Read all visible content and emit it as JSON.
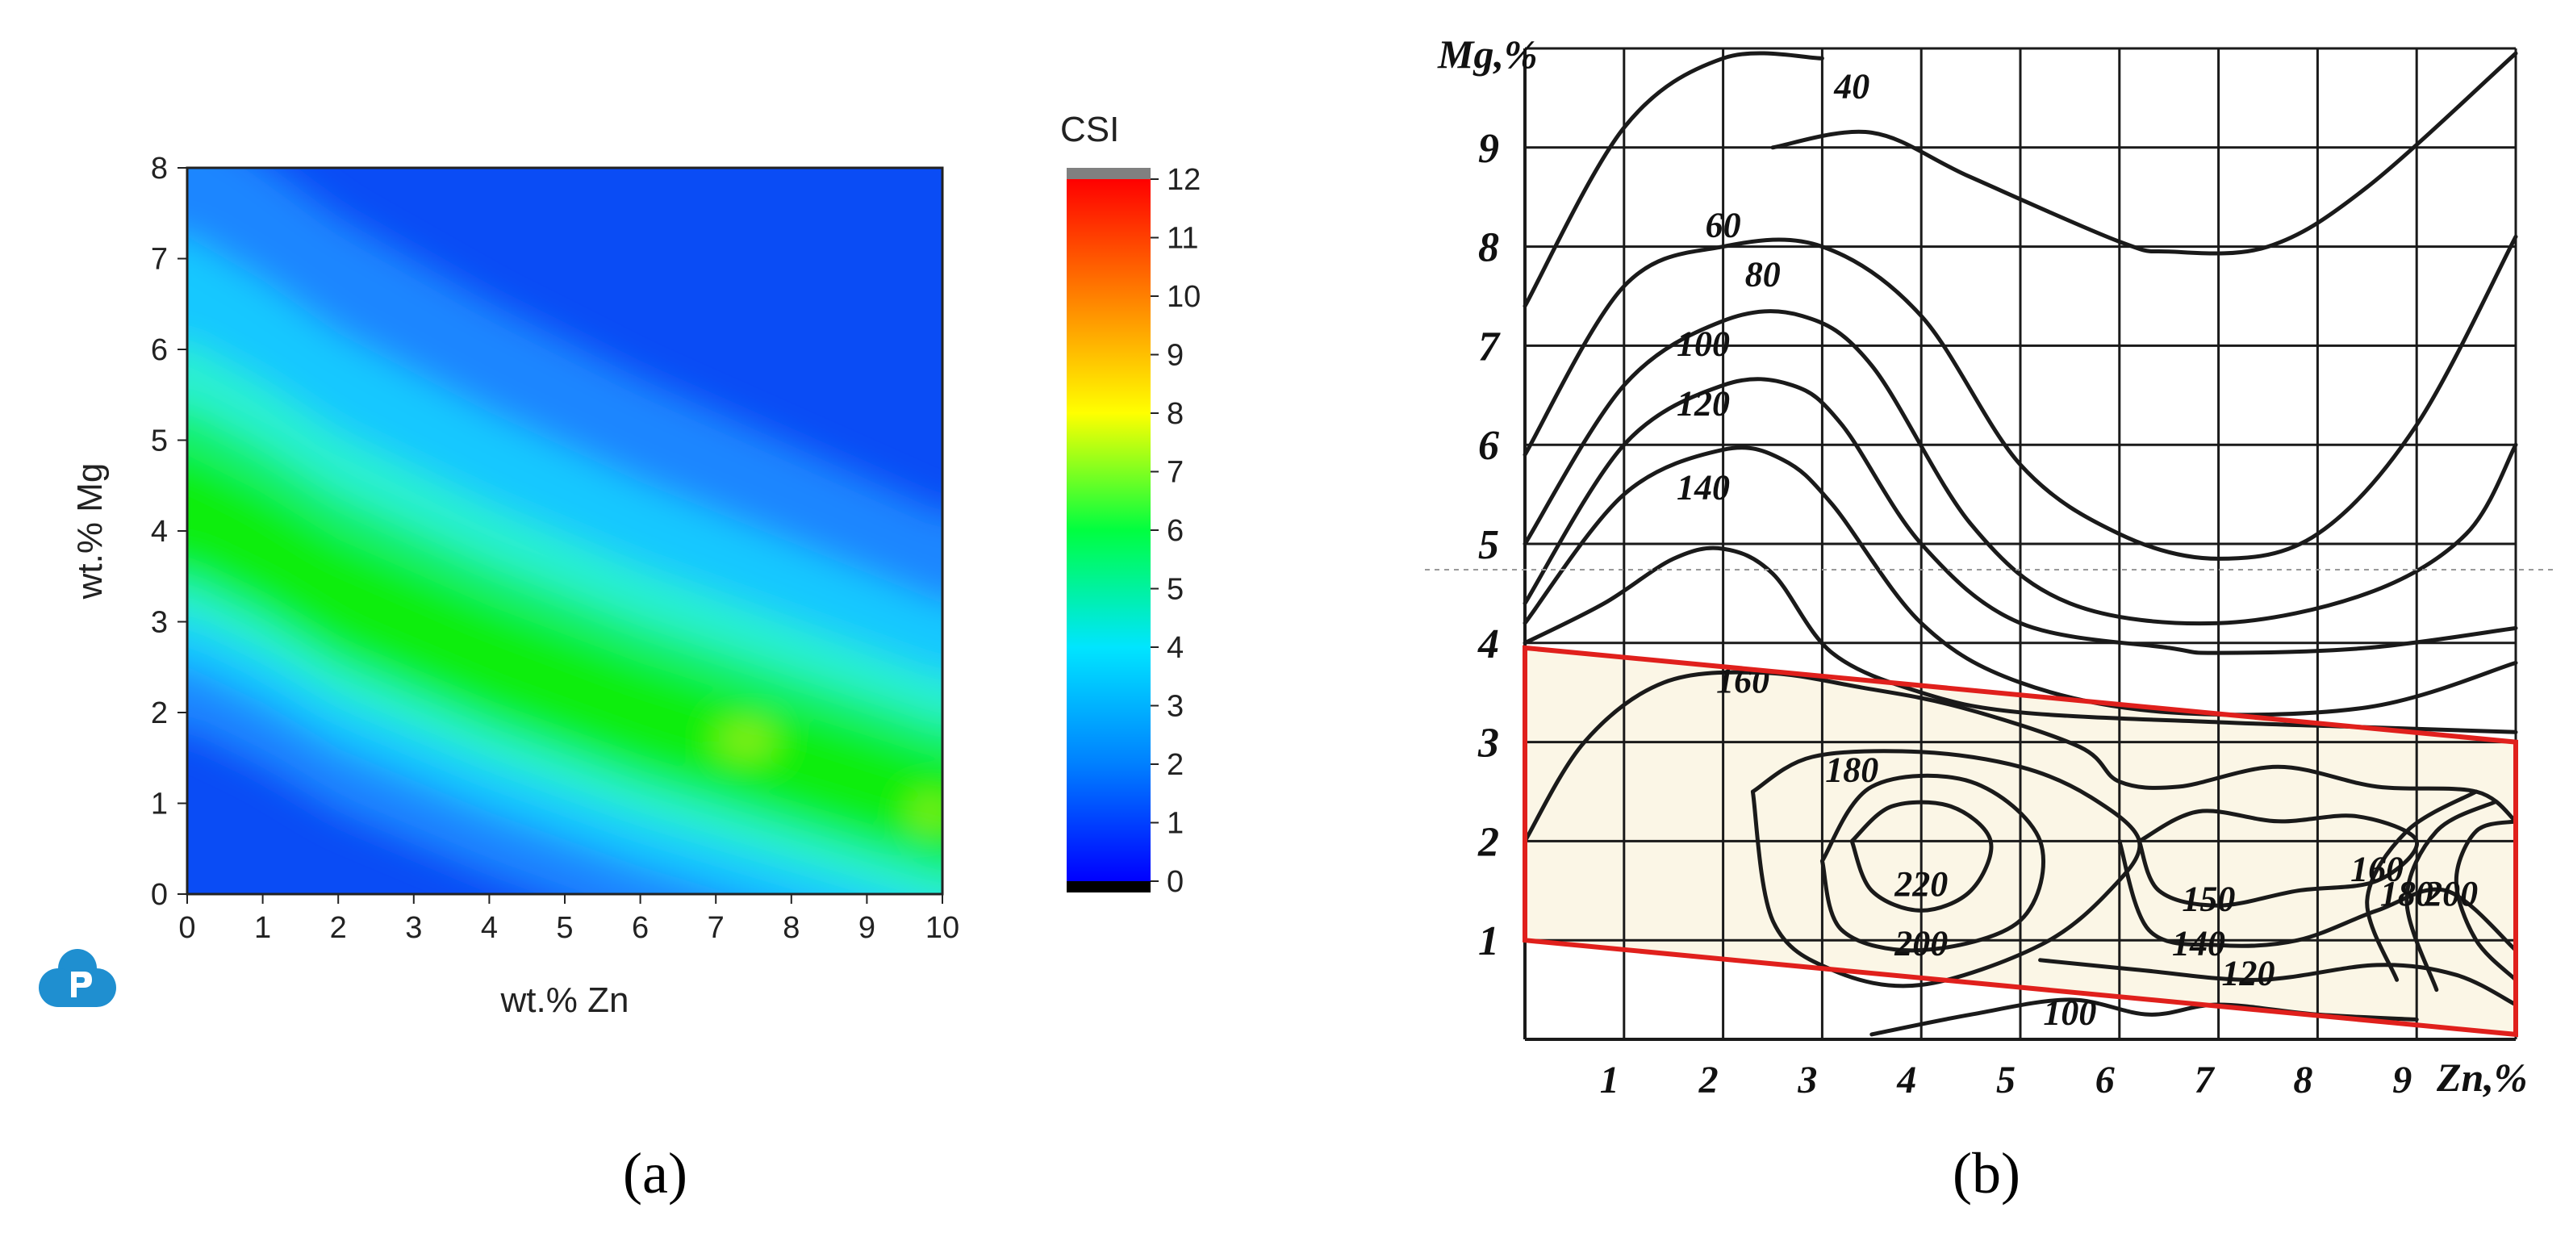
{
  "chart_data": [
    {
      "type": "heatmap",
      "panel_label": "(a)",
      "xlabel": "wt.% Zn",
      "ylabel": "wt.% Mg",
      "xlim": [
        0,
        10
      ],
      "ylim": [
        0,
        8
      ],
      "x_ticks": [
        "0",
        "1",
        "2",
        "3",
        "4",
        "5",
        "6",
        "7",
        "8",
        "9",
        "10"
      ],
      "y_ticks": [
        "0",
        "1",
        "2",
        "3",
        "4",
        "5",
        "6",
        "7",
        "8"
      ],
      "colorbar": {
        "title": "CSI",
        "min": 0,
        "max": 12,
        "ticks": [
          "0",
          "1",
          "2",
          "3",
          "4",
          "5",
          "6",
          "7",
          "8",
          "9",
          "10",
          "11",
          "12"
        ],
        "colors": [
          "#0000ff",
          "#0080ff",
          "#00e5ff",
          "#00ff40",
          "#ffff00",
          "#ff8000",
          "#ff0000"
        ],
        "over_color": "#808080",
        "under_color": "#000000"
      },
      "ridge_mg_by_zn": [
        {
          "zn": 0,
          "mg": 4.0
        },
        {
          "zn": 1,
          "mg": 3.6
        },
        {
          "zn": 2,
          "mg": 3.1
        },
        {
          "zn": 4,
          "mg": 2.4
        },
        {
          "zn": 6,
          "mg": 1.8
        },
        {
          "zn": 8,
          "mg": 1.3
        },
        {
          "zn": 10,
          "mg": 0.8
        }
      ],
      "ridge_peak_csi": 7
    },
    {
      "type": "line",
      "panel_label": "(b)",
      "xlabel": "Zn,%",
      "ylabel": "Mg,%",
      "xlim": [
        0,
        10
      ],
      "ylim": [
        0,
        10
      ],
      "x_ticks": [
        "1",
        "2",
        "3",
        "4",
        "5",
        "6",
        "7",
        "8",
        "9"
      ],
      "y_ticks": [
        "1",
        "2",
        "3",
        "4",
        "5",
        "6",
        "7",
        "8",
        "9"
      ],
      "contours": [
        {
          "label": "40",
          "label_at": [
            3.3,
            9.5
          ],
          "points": [
            [
              0,
              7.4
            ],
            [
              1,
              9.2
            ],
            [
              2,
              9.9
            ],
            [
              3,
              9.9
            ]
          ]
        },
        {
          "label": "40",
          "label_at": [
            3.3,
            9.5
          ],
          "points": [
            [
              2.5,
              9.0
            ],
            [
              3.5,
              9.15
            ],
            [
              4.5,
              8.7
            ],
            [
              6,
              8.05
            ],
            [
              6.5,
              7.95
            ],
            [
              7.5,
              8.0
            ],
            [
              8.5,
              8.6
            ],
            [
              10,
              9.95
            ]
          ]
        },
        {
          "label": "60",
          "label_at": [
            2.0,
            8.1
          ],
          "points": [
            [
              0,
              5.9
            ],
            [
              1,
              7.6
            ],
            [
              2,
              8.0
            ],
            [
              3,
              8.0
            ],
            [
              4,
              7.3
            ],
            [
              5,
              5.8
            ],
            [
              6,
              5.1
            ],
            [
              7,
              4.85
            ],
            [
              8,
              5.1
            ],
            [
              9,
              6.2
            ],
            [
              10,
              8.1
            ]
          ]
        },
        {
          "label": "80",
          "label_at": [
            2.4,
            7.6
          ],
          "points": [
            [
              0,
              5.0
            ],
            [
              1,
              6.6
            ],
            [
              2,
              7.25
            ],
            [
              2.8,
              7.3
            ],
            [
              3.5,
              6.8
            ],
            [
              4.5,
              5.2
            ],
            [
              5.5,
              4.4
            ],
            [
              7,
              4.2
            ],
            [
              8.5,
              4.5
            ],
            [
              9.5,
              5.1
            ],
            [
              10,
              6.0
            ]
          ]
        },
        {
          "label": "100",
          "label_at": [
            1.8,
            6.9
          ],
          "points": [
            [
              0,
              4.4
            ],
            [
              1,
              6.0
            ],
            [
              2,
              6.6
            ],
            [
              2.7,
              6.6
            ],
            [
              3.2,
              6.2
            ],
            [
              4,
              5.0
            ],
            [
              5,
              4.2
            ],
            [
              6.5,
              3.95
            ],
            [
              7,
              3.9
            ],
            [
              8.5,
              3.95
            ],
            [
              10,
              4.15
            ]
          ]
        },
        {
          "label": "120",
          "label_at": [
            1.8,
            6.3
          ],
          "points": [
            [
              0,
              4.2
            ],
            [
              1,
              5.5
            ],
            [
              2,
              5.95
            ],
            [
              2.6,
              5.85
            ],
            [
              3.1,
              5.4
            ],
            [
              4,
              4.2
            ],
            [
              5,
              3.6
            ],
            [
              6.5,
              3.3
            ],
            [
              8.5,
              3.35
            ],
            [
              10,
              3.8
            ]
          ]
        },
        {
          "label": "140",
          "label_at": [
            1.8,
            5.45
          ],
          "points": [
            [
              0,
              4.0
            ],
            [
              0.8,
              4.4
            ],
            [
              1.5,
              4.85
            ],
            [
              2,
              4.95
            ],
            [
              2.5,
              4.7
            ],
            [
              3.1,
              3.9
            ],
            [
              4,
              3.5
            ],
            [
              5,
              3.3
            ],
            [
              7,
              3.2
            ],
            [
              8.5,
              3.15
            ],
            [
              10,
              3.1
            ]
          ]
        },
        {
          "label": "160",
          "label_at": [
            2.2,
            3.5
          ],
          "points": [
            [
              0,
              2.0
            ],
            [
              0.6,
              3.0
            ],
            [
              1.4,
              3.6
            ],
            [
              2.4,
              3.7
            ],
            [
              3.4,
              3.55
            ],
            [
              4.4,
              3.35
            ],
            [
              5.6,
              2.95
            ],
            [
              6,
              2.6
            ],
            [
              6.6,
              2.55
            ],
            [
              7.6,
              2.75
            ],
            [
              8.6,
              2.55
            ],
            [
              9.6,
              2.5
            ],
            [
              10,
              2.2
            ]
          ]
        },
        {
          "label": "180",
          "label_at": [
            3.3,
            2.6
          ],
          "points": [
            [
              2.3,
              2.5
            ],
            [
              2.9,
              2.85
            ],
            [
              4.0,
              2.9
            ],
            [
              5.0,
              2.75
            ],
            [
              5.7,
              2.45
            ],
            [
              6.2,
              2.0
            ],
            [
              5.9,
              1.5
            ],
            [
              5.2,
              0.95
            ],
            [
              4.0,
              0.55
            ],
            [
              3.1,
              0.7
            ],
            [
              2.5,
              1.2
            ],
            [
              2.3,
              2.5
            ]
          ]
        },
        {
          "label": "220",
          "label_at": [
            4.0,
            1.45
          ],
          "points": [
            [
              3.3,
              2.0
            ],
            [
              3.7,
              2.35
            ],
            [
              4.3,
              2.35
            ],
            [
              4.7,
              2.0
            ],
            [
              4.5,
              1.5
            ],
            [
              4.0,
              1.3
            ],
            [
              3.5,
              1.5
            ],
            [
              3.3,
              2.0
            ]
          ]
        },
        {
          "label": "200",
          "label_at": [
            4.0,
            0.85
          ],
          "points": [
            [
              3.0,
              1.8
            ],
            [
              3.5,
              2.55
            ],
            [
              4.5,
              2.6
            ],
            [
              5.2,
              2.0
            ],
            [
              5.0,
              1.2
            ],
            [
              4.0,
              0.9
            ],
            [
              3.2,
              1.1
            ],
            [
              3.0,
              1.8
            ]
          ]
        },
        {
          "label": "150",
          "label_at": [
            6.9,
            1.3
          ],
          "points": [
            [
              6.2,
              2.0
            ],
            [
              6.8,
              2.3
            ],
            [
              7.6,
              2.2
            ],
            [
              8.4,
              2.25
            ],
            [
              9.0,
              2.0
            ],
            [
              8.6,
              1.6
            ],
            [
              7.8,
              1.5
            ],
            [
              7.0,
              1.35
            ],
            [
              6.4,
              1.5
            ],
            [
              6.2,
              2.0
            ]
          ]
        },
        {
          "label": "140",
          "label_at": [
            6.8,
            0.85
          ],
          "points": [
            [
              6.0,
              2.0
            ],
            [
              6.3,
              1.1
            ],
            [
              7.0,
              0.95
            ],
            [
              7.8,
              1.0
            ],
            [
              8.6,
              1.3
            ],
            [
              9.3,
              1.5
            ],
            [
              10,
              0.9
            ]
          ]
        },
        {
          "label": "120",
          "label_at": [
            7.3,
            0.55
          ],
          "points": [
            [
              5.2,
              0.8
            ],
            [
              6.2,
              0.7
            ],
            [
              7.4,
              0.6
            ],
            [
              8.6,
              0.75
            ],
            [
              9.4,
              0.65
            ],
            [
              10,
              0.35
            ]
          ]
        },
        {
          "label": "100",
          "label_at": [
            5.5,
            0.15
          ],
          "points": [
            [
              3.5,
              0.05
            ],
            [
              4.5,
              0.25
            ],
            [
              5.5,
              0.4
            ],
            [
              6.3,
              0.25
            ],
            [
              7.0,
              0.35
            ],
            [
              8.0,
              0.25
            ],
            [
              9.0,
              0.2
            ]
          ]
        },
        {
          "label": "160",
          "label_at": [
            8.6,
            1.6
          ],
          "points": [
            [
              8.8,
              0.6
            ],
            [
              8.5,
              1.4
            ],
            [
              8.9,
              2.1
            ],
            [
              9.6,
              2.5
            ]
          ]
        },
        {
          "label": "180",
          "label_at": [
            8.9,
            1.35
          ],
          "points": [
            [
              9.2,
              0.5
            ],
            [
              8.9,
              1.4
            ],
            [
              9.2,
              2.1
            ],
            [
              9.8,
              2.4
            ]
          ]
        },
        {
          "label": "200",
          "label_at": [
            9.35,
            1.35
          ],
          "points": [
            [
              10,
              0.6
            ],
            [
              9.6,
              1.0
            ],
            [
              9.4,
              1.6
            ],
            [
              9.6,
              2.1
            ],
            [
              10,
              2.2
            ]
          ]
        }
      ],
      "highlight_region": {
        "color": "#e0201c",
        "fill": "#fbf6e6",
        "corners": [
          [
            0,
            3.95
          ],
          [
            10,
            3.0
          ],
          [
            10,
            0.05
          ],
          [
            0,
            1.0
          ]
        ]
      }
    }
  ]
}
